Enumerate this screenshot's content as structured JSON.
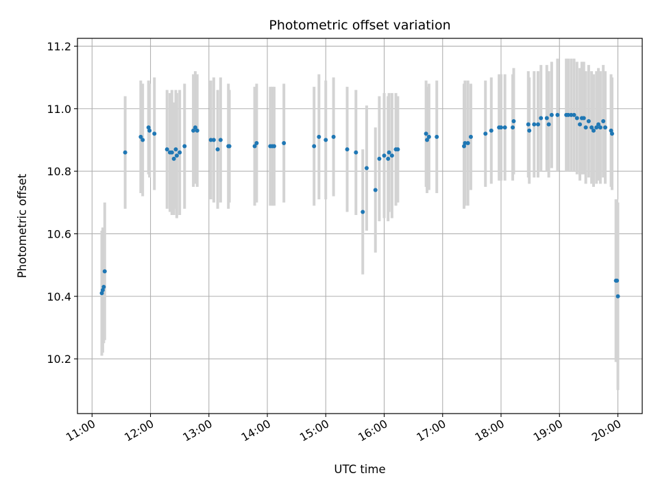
{
  "chart_data": {
    "type": "scatter",
    "title": "Photometric offset variation",
    "xlabel": "UTC time",
    "ylabel": "Photometric offset",
    "xlim": [
      "10:45",
      "20:25"
    ],
    "ylim": [
      10.025,
      11.225
    ],
    "x_ticks": [
      "11:00",
      "12:00",
      "13:00",
      "14:00",
      "15:00",
      "16:00",
      "17:00",
      "18:00",
      "19:00",
      "20:00"
    ],
    "y_ticks": [
      "10.2",
      "10.4",
      "10.6",
      "10.8",
      "11.0",
      "11.2"
    ],
    "grid": true,
    "colors": {
      "points": "#1f77b4",
      "errorbars": "#d3d3d3",
      "grid": "#b0b0b0"
    },
    "points": [
      [
        "11:10",
        10.41,
        0.2
      ],
      [
        "11:11",
        10.42,
        0.2
      ],
      [
        "11:12",
        10.43,
        0.18
      ],
      [
        "11:13",
        10.48,
        0.22
      ],
      [
        "11:34",
        10.86,
        0.18
      ],
      [
        "11:50",
        10.91,
        0.18
      ],
      [
        "11:52",
        10.9,
        0.18
      ],
      [
        "11:58",
        10.94,
        0.15
      ],
      [
        "11:59",
        10.93,
        0.15
      ],
      [
        "12:04",
        10.92,
        0.18
      ],
      [
        "12:17",
        10.87,
        0.19
      ],
      [
        "12:20",
        10.86,
        0.19
      ],
      [
        "12:22",
        10.86,
        0.2
      ],
      [
        "12:24",
        10.84,
        0.18
      ],
      [
        "12:26",
        10.87,
        0.19
      ],
      [
        "12:27",
        10.85,
        0.2
      ],
      [
        "12:30",
        10.86,
        0.2
      ],
      [
        "12:35",
        10.88,
        0.2
      ],
      [
        "12:44",
        10.93,
        0.18
      ],
      [
        "12:46",
        10.94,
        0.18
      ],
      [
        "12:48",
        10.93,
        0.18
      ],
      [
        "13:02",
        10.9,
        0.19
      ],
      [
        "13:05",
        10.9,
        0.2
      ],
      [
        "13:09",
        10.87,
        0.19
      ],
      [
        "13:12",
        10.9,
        0.2
      ],
      [
        "13:20",
        10.88,
        0.2
      ],
      [
        "13:21",
        10.88,
        0.18
      ],
      [
        "13:47",
        10.88,
        0.19
      ],
      [
        "13:49",
        10.89,
        0.19
      ],
      [
        "14:03",
        10.88,
        0.19
      ],
      [
        "14:05",
        10.88,
        0.19
      ],
      [
        "14:07",
        10.88,
        0.19
      ],
      [
        "14:17",
        10.89,
        0.19
      ],
      [
        "14:48",
        10.88,
        0.19
      ],
      [
        "14:53",
        10.91,
        0.2
      ],
      [
        "15:00",
        10.9,
        0.19
      ],
      [
        "15:08",
        10.91,
        0.19
      ],
      [
        "15:22",
        10.87,
        0.2
      ],
      [
        "15:31",
        10.86,
        0.2
      ],
      [
        "15:38",
        10.67,
        0.2
      ],
      [
        "15:42",
        10.81,
        0.2
      ],
      [
        "15:51",
        10.74,
        0.2
      ],
      [
        "15:55",
        10.84,
        0.2
      ],
      [
        "16:00",
        10.85,
        0.2
      ],
      [
        "16:04",
        10.84,
        0.2
      ],
      [
        "16:05",
        10.86,
        0.19
      ],
      [
        "16:08",
        10.85,
        0.2
      ],
      [
        "16:12",
        10.87,
        0.18
      ],
      [
        "16:14",
        10.87,
        0.17
      ],
      [
        "16:43",
        10.92,
        0.17
      ],
      [
        "16:44",
        10.9,
        0.17
      ],
      [
        "16:46",
        10.91,
        0.17
      ],
      [
        "16:54",
        10.91,
        0.18
      ],
      [
        "17:22",
        10.88,
        0.2
      ],
      [
        "17:23",
        10.89,
        0.2
      ],
      [
        "17:26",
        10.89,
        0.2
      ],
      [
        "17:29",
        10.91,
        0.17
      ],
      [
        "17:44",
        10.92,
        0.17
      ],
      [
        "17:50",
        10.93,
        0.17
      ],
      [
        "17:58",
        10.94,
        0.17
      ],
      [
        "18:00",
        10.94,
        0.17
      ],
      [
        "18:04",
        10.94,
        0.17
      ],
      [
        "18:12",
        10.94,
        0.17
      ],
      [
        "18:13",
        10.96,
        0.17
      ],
      [
        "18:28",
        10.95,
        0.17
      ],
      [
        "18:29",
        10.93,
        0.17
      ],
      [
        "18:34",
        10.95,
        0.17
      ],
      [
        "18:38",
        10.95,
        0.17
      ],
      [
        "18:41",
        10.97,
        0.17
      ],
      [
        "18:47",
        10.97,
        0.17
      ],
      [
        "18:49",
        10.95,
        0.17
      ],
      [
        "18:52",
        10.98,
        0.17
      ],
      [
        "18:58",
        10.98,
        0.18
      ],
      [
        "19:07",
        10.98,
        0.18
      ],
      [
        "19:09",
        10.98,
        0.18
      ],
      [
        "19:12",
        10.98,
        0.18
      ],
      [
        "19:15",
        10.98,
        0.18
      ],
      [
        "19:18",
        10.97,
        0.18
      ],
      [
        "19:21",
        10.95,
        0.18
      ],
      [
        "19:23",
        10.97,
        0.18
      ],
      [
        "19:25",
        10.97,
        0.18
      ],
      [
        "19:27",
        10.94,
        0.18
      ],
      [
        "19:30",
        10.96,
        0.18
      ],
      [
        "19:33",
        10.94,
        0.18
      ],
      [
        "19:35",
        10.93,
        0.18
      ],
      [
        "19:38",
        10.94,
        0.18
      ],
      [
        "19:40",
        10.95,
        0.18
      ],
      [
        "19:42",
        10.94,
        0.18
      ],
      [
        "19:45",
        10.96,
        0.18
      ],
      [
        "19:47",
        10.94,
        0.18
      ],
      [
        "19:53",
        10.93,
        0.18
      ],
      [
        "19:54",
        10.92,
        0.18
      ],
      [
        "19:58",
        10.45,
        0.26
      ],
      [
        "19:59",
        10.45,
        0.26
      ],
      [
        "20:00",
        10.4,
        0.3
      ]
    ]
  }
}
